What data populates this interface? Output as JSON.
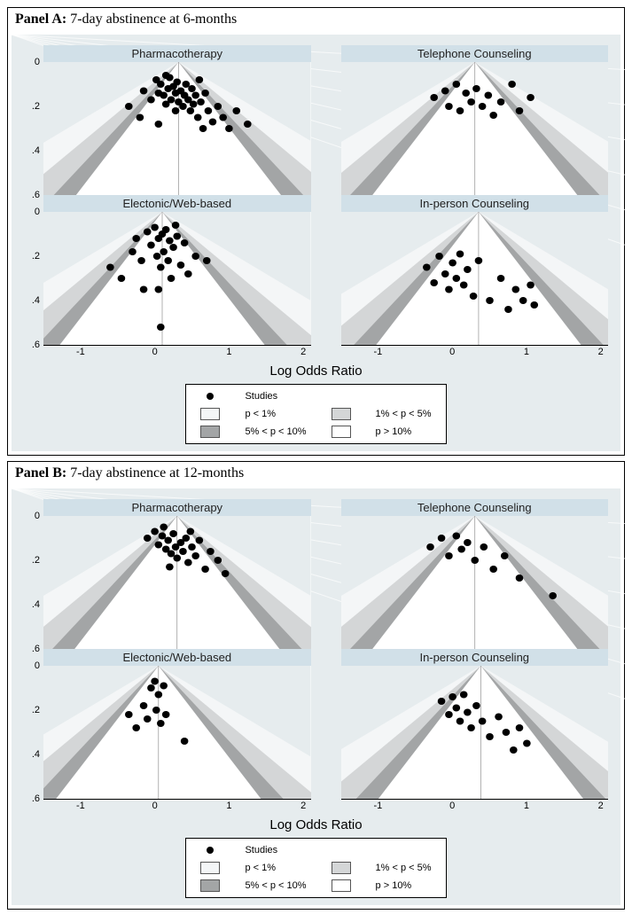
{
  "xlim": [
    -1.5,
    2.1
  ],
  "ylim": [
    0,
    0.6
  ],
  "xticks": [
    -1,
    0,
    1,
    2
  ],
  "yticks": [
    0,
    0.2,
    0.4,
    0.6
  ],
  "ytick_labels": [
    "0",
    ".2",
    ".4",
    ".6"
  ],
  "xlabel": "Log Odds Ratio",
  "colors": {
    "panel_bg": "#e6ecee",
    "sub_title_bg": "#d1e0e8",
    "funnel_outer": "#f4f6f7",
    "funnel_mid": "#d4d6d7",
    "funnel_inner": "#a3a5a6",
    "funnel_center": "#ffffff",
    "point": "#000000",
    "border": "#000000"
  },
  "funnel_slopes": {
    "outer": 5.0,
    "mid": 3.6,
    "inner": 2.8,
    "center_line": 2.3
  },
  "point_radius": 4,
  "legend": {
    "studies": "Studies",
    "p1": "p < 1%",
    "p2": "1% < p < 5%",
    "p3": "5% < p < 10%",
    "p4": "p > 10%"
  },
  "panels": [
    {
      "title_bold": "Panel A:",
      "title_rest": " 7-day abstinence at 6-months",
      "subplots": [
        {
          "title": "Pharmacotherapy",
          "apex_x": 0.32,
          "points": [
            [
              -0.15,
              0.13
            ],
            [
              -0.05,
              0.17
            ],
            [
              0.02,
              0.08
            ],
            [
              0.05,
              0.14
            ],
            [
              0.08,
              0.1
            ],
            [
              0.12,
              0.15
            ],
            [
              0.15,
              0.19
            ],
            [
              0.18,
              0.12
            ],
            [
              0.2,
              0.07
            ],
            [
              0.22,
              0.17
            ],
            [
              0.25,
              0.11
            ],
            [
              0.28,
              0.14
            ],
            [
              0.28,
              0.22
            ],
            [
              0.3,
              0.09
            ],
            [
              0.32,
              0.18
            ],
            [
              0.35,
              0.13
            ],
            [
              0.38,
              0.2
            ],
            [
              0.4,
              0.15
            ],
            [
              0.42,
              0.1
            ],
            [
              0.45,
              0.17
            ],
            [
              0.48,
              0.22
            ],
            [
              0.5,
              0.12
            ],
            [
              0.52,
              0.19
            ],
            [
              0.55,
              0.15
            ],
            [
              0.58,
              0.25
            ],
            [
              0.62,
              0.18
            ],
            [
              0.65,
              0.3
            ],
            [
              0.68,
              0.14
            ],
            [
              0.72,
              0.22
            ],
            [
              0.78,
              0.27
            ],
            [
              0.85,
              0.2
            ],
            [
              0.92,
              0.25
            ],
            [
              1.0,
              0.3
            ],
            [
              1.1,
              0.22
            ],
            [
              1.25,
              0.28
            ],
            [
              -0.35,
              0.2
            ],
            [
              -0.2,
              0.25
            ],
            [
              0.05,
              0.28
            ],
            [
              0.15,
              0.06
            ],
            [
              0.6,
              0.08
            ]
          ]
        },
        {
          "title": "Telephone Counseling",
          "apex_x": 0.3,
          "points": [
            [
              -0.25,
              0.16
            ],
            [
              -0.1,
              0.13
            ],
            [
              -0.05,
              0.2
            ],
            [
              0.05,
              0.1
            ],
            [
              0.1,
              0.22
            ],
            [
              0.18,
              0.14
            ],
            [
              0.25,
              0.18
            ],
            [
              0.32,
              0.12
            ],
            [
              0.4,
              0.2
            ],
            [
              0.48,
              0.15
            ],
            [
              0.55,
              0.24
            ],
            [
              0.65,
              0.18
            ],
            [
              0.8,
              0.1
            ],
            [
              0.9,
              0.22
            ],
            [
              1.05,
              0.16
            ]
          ]
        },
        {
          "title": "Electonic/Web-based",
          "apex_x": 0.1,
          "points": [
            [
              -0.6,
              0.25
            ],
            [
              -0.45,
              0.3
            ],
            [
              -0.3,
              0.18
            ],
            [
              -0.25,
              0.12
            ],
            [
              -0.18,
              0.22
            ],
            [
              -0.1,
              0.09
            ],
            [
              -0.05,
              0.15
            ],
            [
              0.0,
              0.07
            ],
            [
              0.03,
              0.2
            ],
            [
              0.05,
              0.12
            ],
            [
              0.08,
              0.25
            ],
            [
              0.1,
              0.1
            ],
            [
              0.12,
              0.18
            ],
            [
              0.15,
              0.08
            ],
            [
              0.18,
              0.22
            ],
            [
              0.2,
              0.13
            ],
            [
              0.22,
              0.3
            ],
            [
              0.25,
              0.16
            ],
            [
              0.3,
              0.11
            ],
            [
              0.35,
              0.24
            ],
            [
              0.4,
              0.14
            ],
            [
              0.45,
              0.28
            ],
            [
              0.55,
              0.2
            ],
            [
              0.7,
              0.22
            ],
            [
              0.08,
              0.52
            ],
            [
              -0.15,
              0.35
            ],
            [
              0.28,
              0.06
            ],
            [
              0.05,
              0.35
            ]
          ]
        },
        {
          "title": "In-person Counseling",
          "apex_x": 0.35,
          "points": [
            [
              -0.35,
              0.25
            ],
            [
              -0.25,
              0.32
            ],
            [
              -0.18,
              0.2
            ],
            [
              -0.1,
              0.28
            ],
            [
              -0.05,
              0.35
            ],
            [
              0.0,
              0.23
            ],
            [
              0.05,
              0.3
            ],
            [
              0.1,
              0.19
            ],
            [
              0.15,
              0.33
            ],
            [
              0.2,
              0.26
            ],
            [
              0.28,
              0.38
            ],
            [
              0.35,
              0.22
            ],
            [
              0.5,
              0.4
            ],
            [
              0.65,
              0.3
            ],
            [
              0.75,
              0.44
            ],
            [
              0.85,
              0.35
            ],
            [
              0.95,
              0.4
            ],
            [
              1.05,
              0.33
            ],
            [
              1.1,
              0.42
            ]
          ]
        }
      ]
    },
    {
      "title_bold": "Panel B:",
      "title_rest": " 7-day abstinence at 12-months",
      "subplots": [
        {
          "title": "Pharmacotherapy",
          "apex_x": 0.3,
          "points": [
            [
              -0.1,
              0.1
            ],
            [
              0.0,
              0.07
            ],
            [
              0.05,
              0.13
            ],
            [
              0.1,
              0.09
            ],
            [
              0.15,
              0.15
            ],
            [
              0.18,
              0.11
            ],
            [
              0.22,
              0.17
            ],
            [
              0.25,
              0.08
            ],
            [
              0.28,
              0.14
            ],
            [
              0.3,
              0.19
            ],
            [
              0.35,
              0.12
            ],
            [
              0.38,
              0.16
            ],
            [
              0.42,
              0.1
            ],
            [
              0.45,
              0.21
            ],
            [
              0.5,
              0.14
            ],
            [
              0.55,
              0.18
            ],
            [
              0.6,
              0.11
            ],
            [
              0.68,
              0.24
            ],
            [
              0.75,
              0.16
            ],
            [
              0.85,
              0.2
            ],
            [
              0.95,
              0.26
            ],
            [
              0.12,
              0.05
            ],
            [
              0.2,
              0.23
            ],
            [
              0.48,
              0.07
            ]
          ]
        },
        {
          "title": "Telephone Counseling",
          "apex_x": 0.3,
          "points": [
            [
              -0.3,
              0.14
            ],
            [
              -0.15,
              0.1
            ],
            [
              -0.05,
              0.18
            ],
            [
              0.05,
              0.09
            ],
            [
              0.12,
              0.15
            ],
            [
              0.2,
              0.12
            ],
            [
              0.3,
              0.2
            ],
            [
              0.42,
              0.14
            ],
            [
              0.55,
              0.24
            ],
            [
              0.7,
              0.18
            ],
            [
              0.9,
              0.28
            ],
            [
              1.35,
              0.36
            ]
          ]
        },
        {
          "title": "Electonic/Web-based",
          "apex_x": 0.05,
          "points": [
            [
              -0.35,
              0.22
            ],
            [
              -0.25,
              0.28
            ],
            [
              -0.15,
              0.18
            ],
            [
              -0.1,
              0.24
            ],
            [
              -0.05,
              0.1
            ],
            [
              0.0,
              0.07
            ],
            [
              0.02,
              0.2
            ],
            [
              0.05,
              0.13
            ],
            [
              0.08,
              0.26
            ],
            [
              0.12,
              0.09
            ],
            [
              0.15,
              0.22
            ],
            [
              0.4,
              0.34
            ]
          ]
        },
        {
          "title": "In-person Counseling",
          "apex_x": 0.38,
          "points": [
            [
              -0.15,
              0.16
            ],
            [
              -0.05,
              0.22
            ],
            [
              0.0,
              0.14
            ],
            [
              0.05,
              0.19
            ],
            [
              0.1,
              0.25
            ],
            [
              0.15,
              0.13
            ],
            [
              0.2,
              0.21
            ],
            [
              0.25,
              0.28
            ],
            [
              0.32,
              0.18
            ],
            [
              0.4,
              0.25
            ],
            [
              0.5,
              0.32
            ],
            [
              0.62,
              0.23
            ],
            [
              0.72,
              0.3
            ],
            [
              0.82,
              0.38
            ],
            [
              0.9,
              0.28
            ],
            [
              1.0,
              0.35
            ]
          ]
        }
      ]
    }
  ]
}
